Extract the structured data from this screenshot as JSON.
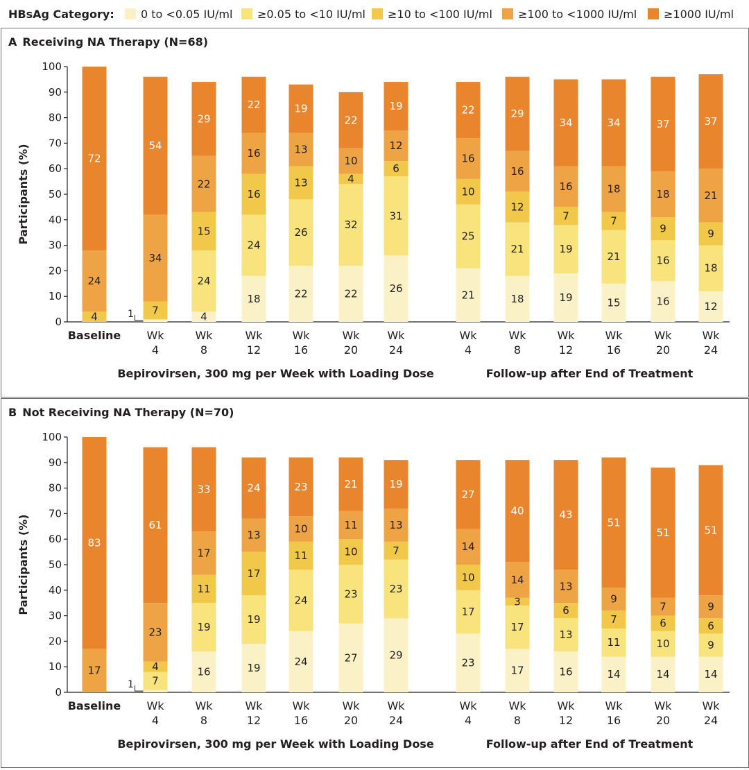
{
  "legend": {
    "title": "HBsAg Category:",
    "items": [
      {
        "label": "0 to <0.05 IU/ml",
        "color": "#faf1c6"
      },
      {
        "label": "≥0.05 to <10 IU/ml",
        "color": "#f8e37c"
      },
      {
        "label": "≥10 to <100 IU/ml",
        "color": "#f2c84b"
      },
      {
        "label": "≥100 to <1000 IU/ml",
        "color": "#eea444"
      },
      {
        "label": "≥1000 IU/ml",
        "color": "#e9862d"
      }
    ]
  },
  "chart_data": [
    {
      "type": "bar",
      "stacked": true,
      "panel_letter": "A",
      "title": "Receiving NA Therapy (N=68)",
      "ylabel": "Participants (%)",
      "ylim": [
        0,
        100
      ],
      "yticks": [
        0,
        10,
        20,
        30,
        40,
        50,
        60,
        70,
        80,
        90,
        100
      ],
      "categories": [
        "Baseline",
        "Wk 4",
        "Wk 8",
        "Wk 12",
        "Wk 16",
        "Wk 20",
        "Wk 24",
        "Wk 4",
        "Wk 8",
        "Wk 12",
        "Wk 16",
        "Wk 20",
        "Wk 24"
      ],
      "group_labels": [
        "Bepirovirsen, 300 mg per Week with Loading Dose",
        "Follow-up after End of Treatment"
      ],
      "series": [
        {
          "name": "0 to <0.05 IU/ml",
          "values": [
            0,
            1,
            4,
            18,
            22,
            22,
            26,
            21,
            18,
            19,
            15,
            16,
            12
          ]
        },
        {
          "name": "≥0.05 to <10 IU/ml",
          "values": [
            0,
            0,
            24,
            24,
            26,
            32,
            31,
            25,
            21,
            19,
            21,
            16,
            18
          ]
        },
        {
          "name": "≥10 to <100 IU/ml",
          "values": [
            4,
            7,
            15,
            16,
            13,
            4,
            6,
            10,
            12,
            7,
            7,
            9,
            9
          ]
        },
        {
          "name": "≥100 to <1000 IU/ml",
          "values": [
            24,
            34,
            22,
            16,
            13,
            10,
            12,
            16,
            16,
            16,
            18,
            18,
            21
          ]
        },
        {
          "name": "≥1000 IU/ml",
          "values": [
            72,
            54,
            29,
            22,
            19,
            22,
            19,
            22,
            29,
            34,
            34,
            37,
            37
          ]
        }
      ]
    },
    {
      "type": "bar",
      "stacked": true,
      "panel_letter": "B",
      "title": "Not Receiving NA Therapy (N=70)",
      "ylabel": "Participants (%)",
      "ylim": [
        0,
        100
      ],
      "yticks": [
        0,
        10,
        20,
        30,
        40,
        50,
        60,
        70,
        80,
        90,
        100
      ],
      "categories": [
        "Baseline",
        "Wk 4",
        "Wk 8",
        "Wk 12",
        "Wk 16",
        "Wk 20",
        "Wk 24",
        "Wk 4",
        "Wk 8",
        "Wk 12",
        "Wk 16",
        "Wk 20",
        "Wk 24"
      ],
      "group_labels": [
        "Bepirovirsen, 300 mg per Week with Loading Dose",
        "Follow-up after End of Treatment"
      ],
      "series": [
        {
          "name": "0 to <0.05 IU/ml",
          "values": [
            0,
            1,
            16,
            19,
            24,
            27,
            29,
            23,
            17,
            16,
            14,
            14,
            14
          ]
        },
        {
          "name": "≥0.05 to <10 IU/ml",
          "values": [
            0,
            7,
            19,
            19,
            24,
            23,
            23,
            17,
            17,
            13,
            11,
            10,
            9
          ]
        },
        {
          "name": "≥10 to <100 IU/ml",
          "values": [
            0,
            4,
            11,
            17,
            11,
            10,
            7,
            10,
            3,
            6,
            7,
            6,
            6
          ]
        },
        {
          "name": "≥100 to <1000 IU/ml",
          "values": [
            17,
            23,
            17,
            13,
            10,
            11,
            13,
            14,
            14,
            13,
            9,
            7,
            9
          ]
        },
        {
          "name": "≥1000 IU/ml",
          "values": [
            83,
            61,
            33,
            24,
            23,
            21,
            19,
            27,
            40,
            43,
            51,
            51,
            51
          ]
        }
      ]
    }
  ]
}
